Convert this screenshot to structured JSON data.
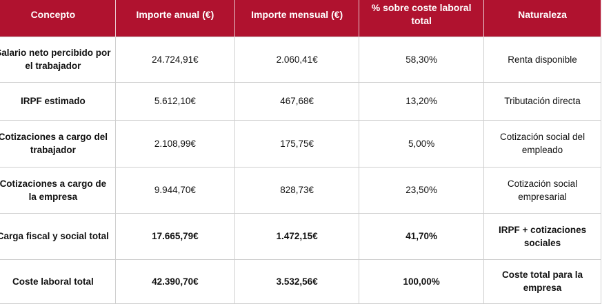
{
  "table": {
    "headers": [
      "Concepto",
      "Importe anual (€)",
      "Importe mensual (€)",
      "% sobre coste laboral total",
      "Naturaleza"
    ],
    "rows": [
      {
        "cells": [
          "Salario neto percibido por el trabajador",
          "24.724,91€",
          "2.060,41€",
          "58,30%",
          "Renta disponible"
        ],
        "bold": false
      },
      {
        "cells": [
          "IRPF estimado",
          "5.612,10€",
          "467,68€",
          "13,20%",
          "Tributación directa"
        ],
        "bold": false
      },
      {
        "cells": [
          "Cotizaciones a cargo del trabajador",
          "2.108,99€",
          "175,75€",
          "5,00%",
          "Cotización social del empleado"
        ],
        "bold": false
      },
      {
        "cells": [
          "Cotizaciones a cargo de la empresa",
          "9.944,70€",
          "828,73€",
          "23,50%",
          "Cotización social empresarial"
        ],
        "bold": false
      },
      {
        "cells": [
          "Carga fiscal y social total",
          "17.665,79€",
          "1.472,15€",
          "41,70%",
          "IRPF + cotizaciones sociales"
        ],
        "bold": true
      },
      {
        "cells": [
          "Coste laboral total",
          "42.390,70€",
          "3.532,56€",
          "100,00%",
          "Coste total para la empresa"
        ],
        "bold": true
      }
    ]
  },
  "colors": {
    "header_bg": "#b0122f",
    "header_text": "#ffffff",
    "border": "#cfcfcf"
  }
}
